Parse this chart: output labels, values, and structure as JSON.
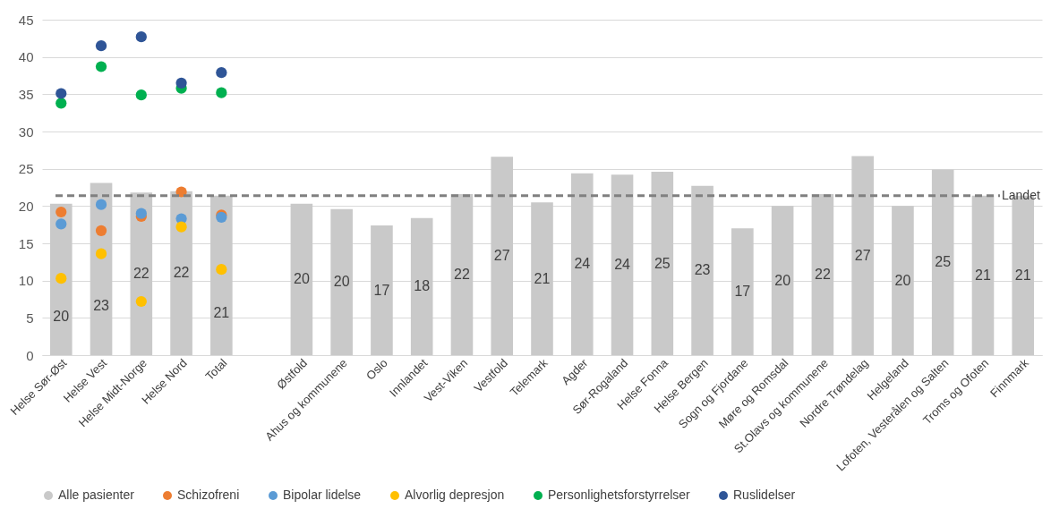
{
  "chart_data": {
    "type": "bar",
    "categories": [
      "Helse Sør-Øst",
      "Helse Vest",
      "Helse Midt-Norge",
      "Helse Nord",
      "Total",
      null,
      "Østfold",
      "Ahus og kommunene",
      "Oslo",
      "Innlandet",
      "Vest-Viken",
      "Vestfold",
      "Telemark",
      "Agder",
      "Sør-Rogaland",
      "Helse Fonna",
      "Helse Bergen",
      "Sogn og Fjordane",
      "Møre og Romsdal",
      "St.Olavs og kommunene",
      "Nordre Trøndelag",
      "Helgeland",
      "Lofoten, Vesterålen og Salten",
      "Troms og Ofoten",
      "Finnmark"
    ],
    "series": [
      {
        "name": "Alle pasienter",
        "color": "#c9c9c9",
        "values": [
          20.3,
          23.1,
          21.8,
          22.0,
          21.4,
          null,
          20.3,
          19.6,
          17.4,
          18.4,
          21.6,
          26.6,
          20.5,
          24.4,
          24.2,
          24.6,
          22.7,
          17.0,
          20.0,
          21.6,
          26.7,
          20.0,
          24.9,
          21.4,
          21.4
        ],
        "value_labels": [
          "20",
          "23",
          "22",
          "22",
          "21",
          null,
          "20",
          "20",
          "17",
          "18",
          "22",
          "27",
          "21",
          "24",
          "24",
          "25",
          "23",
          "17",
          "20",
          "22",
          "27",
          "20",
          "25",
          "21",
          "21"
        ]
      },
      {
        "name": "Schizofreni",
        "type": "scatter",
        "color": "#ed7d31",
        "x": [
          "Helse Sør-Øst",
          "Helse Vest",
          "Helse Midt-Norge",
          "Helse Nord",
          "Total"
        ],
        "values": [
          19.2,
          16.7,
          18.6,
          21.9,
          18.8
        ]
      },
      {
        "name": "Bipolar lidelse",
        "type": "scatter",
        "color": "#5b9bd5",
        "x": [
          "Helse Sør-Øst",
          "Helse Vest",
          "Helse Midt-Norge",
          "Helse Nord",
          "Total"
        ],
        "values": [
          17.6,
          20.2,
          19.0,
          18.3,
          18.5
        ]
      },
      {
        "name": "Alvorlig depresjon",
        "type": "scatter",
        "color": "#ffc000",
        "x": [
          "Helse Sør-Øst",
          "Helse Vest",
          "Helse Midt-Norge",
          "Helse Nord",
          "Total"
        ],
        "values": [
          10.3,
          13.6,
          7.2,
          17.2,
          11.5
        ]
      },
      {
        "name": "Personlighetsforstyrrelser",
        "type": "scatter",
        "color": "#00b050",
        "x": [
          "Helse Sør-Øst",
          "Helse Vest",
          "Helse Midt-Norge",
          "Helse Nord",
          "Total"
        ],
        "values": [
          33.8,
          38.7,
          34.9,
          35.8,
          35.2
        ]
      },
      {
        "name": "Ruslidelser",
        "type": "scatter",
        "color": "#2f5597",
        "x": [
          "Helse Sør-Øst",
          "Helse Vest",
          "Helse Midt-Norge",
          "Helse Nord",
          "Total"
        ],
        "values": [
          35.1,
          41.5,
          42.7,
          36.5,
          37.9
        ]
      }
    ],
    "ylim": [
      0,
      45
    ],
    "yticks": [
      0,
      5,
      10,
      15,
      20,
      25,
      30,
      35,
      40,
      45
    ],
    "ref_lines": [
      {
        "axis": "y",
        "value": 21.4,
        "label": "Landet",
        "color": "#808080",
        "line_style": "dashed"
      }
    ],
    "grid": "y",
    "legend": "bottom",
    "marker": "circle"
  }
}
